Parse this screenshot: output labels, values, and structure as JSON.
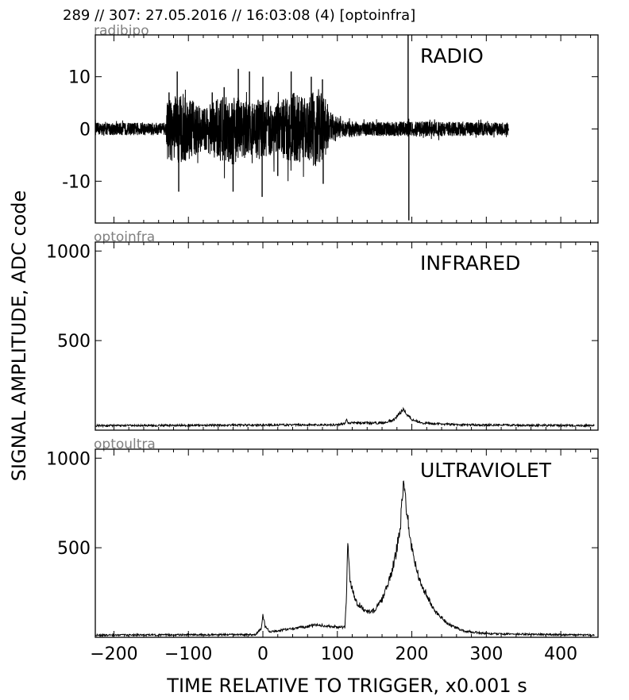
{
  "header": {
    "title": "289 // 307:   27.05.2016 // 16:03:08 (4)  [optoinfra]"
  },
  "chart_data": {
    "type": "line",
    "xlabel": "TIME RELATIVE TO TRIGGER,   x0.001 s",
    "ylabel": "SIGNAL AMPLITUDE,  ADC code",
    "xlim": [
      -225,
      450
    ],
    "xticks": [
      -200,
      -100,
      0,
      100,
      200,
      300,
      400
    ],
    "xtick_labels": [
      "−200",
      "−100",
      "0",
      "100",
      "200",
      "300",
      "400"
    ],
    "line_color": "#000000",
    "grid": false,
    "panels": [
      {
        "id": "radio",
        "name": "radibipo",
        "label": "RADIO",
        "ylim": [
          -18,
          18
        ],
        "yticks": [
          10,
          0,
          -10
        ],
        "ytick_labels": [
          "10",
          "0",
          "-10"
        ],
        "x_range": [
          -225,
          330
        ],
        "envelope": [
          {
            "x": -225,
            "a": 1.2
          },
          {
            "x": -130,
            "a": 1.2
          },
          {
            "x": -128,
            "a": 6
          },
          {
            "x": -110,
            "a": 7
          },
          {
            "x": -80,
            "a": 4
          },
          {
            "x": -60,
            "a": 6
          },
          {
            "x": -40,
            "a": 7
          },
          {
            "x": -20,
            "a": 5
          },
          {
            "x": 0,
            "a": 6
          },
          {
            "x": 20,
            "a": 5
          },
          {
            "x": 40,
            "a": 7
          },
          {
            "x": 60,
            "a": 6
          },
          {
            "x": 75,
            "a": 8
          },
          {
            "x": 90,
            "a": 3
          },
          {
            "x": 110,
            "a": 1.5
          },
          {
            "x": 150,
            "a": 1.3
          },
          {
            "x": 200,
            "a": 1.5
          },
          {
            "x": 330,
            "a": 1.2
          }
        ],
        "spikes": [
          {
            "x": -126,
            "y": 7
          },
          {
            "x": -115,
            "y": 11
          },
          {
            "x": -113,
            "y": -12
          },
          {
            "x": -68,
            "y": 7
          },
          {
            "x": -52,
            "y": 8
          },
          {
            "x": -40,
            "y": -12
          },
          {
            "x": -33,
            "y": 11.5
          },
          {
            "x": -18,
            "y": 11
          },
          {
            "x": -1,
            "y": -13
          },
          {
            "x": 0,
            "y": 10
          },
          {
            "x": 20,
            "y": -9
          },
          {
            "x": 38,
            "y": 11
          },
          {
            "x": 65,
            "y": 10
          },
          {
            "x": 80,
            "y": 9.5
          },
          {
            "x": 81,
            "y": -10.5
          },
          {
            "x": 195,
            "y": 18
          },
          {
            "x": 196,
            "y": -17.5
          }
        ]
      },
      {
        "id": "infrared",
        "name": "optoinfra",
        "label": "INFRARED",
        "ylim": [
          0,
          1050
        ],
        "yticks": [
          1000,
          500
        ],
        "ytick_labels": [
          "1000",
          "500"
        ],
        "x_range": [
          -225,
          445
        ],
        "points": [
          {
            "x": -225,
            "y": 25
          },
          {
            "x": 100,
            "y": 30
          },
          {
            "x": 110,
            "y": 38
          },
          {
            "x": 112,
            "y": 60
          },
          {
            "x": 114,
            "y": 40
          },
          {
            "x": 160,
            "y": 40
          },
          {
            "x": 175,
            "y": 55
          },
          {
            "x": 185,
            "y": 100
          },
          {
            "x": 188,
            "y": 120
          },
          {
            "x": 192,
            "y": 95
          },
          {
            "x": 200,
            "y": 60
          },
          {
            "x": 215,
            "y": 40
          },
          {
            "x": 260,
            "y": 30
          },
          {
            "x": 445,
            "y": 25
          }
        ]
      },
      {
        "id": "ultraviolet",
        "name": "optoultra",
        "label": "ULTRAVIOLET",
        "ylim": [
          0,
          1050
        ],
        "yticks": [
          1000,
          500
        ],
        "ytick_labels": [
          "1000",
          "500"
        ],
        "x_range": [
          -225,
          445
        ],
        "points": [
          {
            "x": -225,
            "y": 12
          },
          {
            "x": -10,
            "y": 15
          },
          {
            "x": -2,
            "y": 50
          },
          {
            "x": 0,
            "y": 130
          },
          {
            "x": 3,
            "y": 60
          },
          {
            "x": 10,
            "y": 30
          },
          {
            "x": 40,
            "y": 50
          },
          {
            "x": 60,
            "y": 60
          },
          {
            "x": 75,
            "y": 70
          },
          {
            "x": 90,
            "y": 60
          },
          {
            "x": 110,
            "y": 55
          },
          {
            "x": 112,
            "y": 200
          },
          {
            "x": 114,
            "y": 530
          },
          {
            "x": 117,
            "y": 320
          },
          {
            "x": 125,
            "y": 200
          },
          {
            "x": 140,
            "y": 140
          },
          {
            "x": 150,
            "y": 150
          },
          {
            "x": 160,
            "y": 210
          },
          {
            "x": 170,
            "y": 320
          },
          {
            "x": 178,
            "y": 450
          },
          {
            "x": 185,
            "y": 650
          },
          {
            "x": 189,
            "y": 860
          },
          {
            "x": 193,
            "y": 720
          },
          {
            "x": 200,
            "y": 500
          },
          {
            "x": 210,
            "y": 320
          },
          {
            "x": 230,
            "y": 150
          },
          {
            "x": 250,
            "y": 70
          },
          {
            "x": 270,
            "y": 35
          },
          {
            "x": 300,
            "y": 20
          },
          {
            "x": 445,
            "y": 12
          }
        ]
      }
    ]
  }
}
